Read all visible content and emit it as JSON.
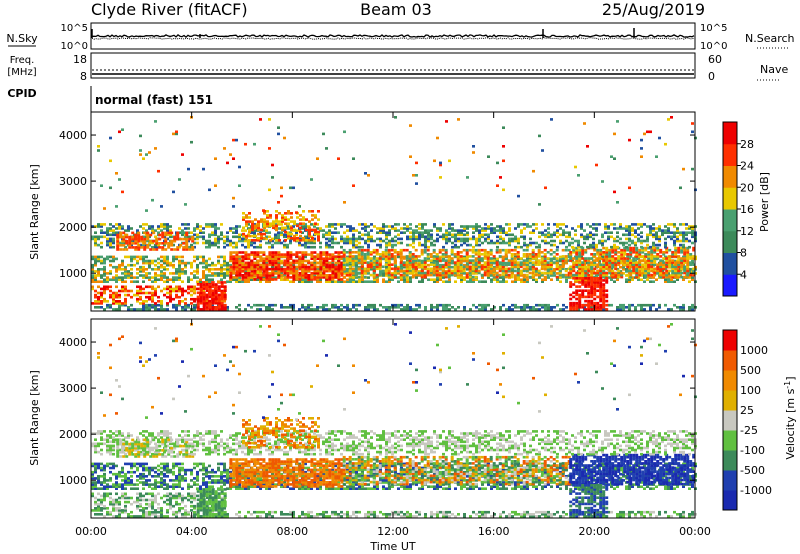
{
  "header": {
    "station": "Clyde River (fitACF)",
    "beam": "Beam 03",
    "date": "25/Aug/2019"
  },
  "noise_panel": {
    "left_label": "N.Sky",
    "right_label": "N.Search",
    "left_ticks": [
      "10^5",
      "10^0"
    ],
    "right_ticks": [
      "10^5",
      "10^0"
    ]
  },
  "freq_panel": {
    "left_label_1": "Freq.",
    "left_label_2": "[MHz]",
    "right_label": "Nave",
    "left_ticks": [
      "18",
      "8"
    ],
    "right_ticks": [
      "60",
      "0"
    ]
  },
  "cpid": {
    "label": "CPID",
    "value": "normal (fast) 151"
  },
  "colors": {
    "power": [
      "#1a1aff",
      "#2050a0",
      "#3c8a5a",
      "#4aa070",
      "#e8c800",
      "#f08a00",
      "#ff3000",
      "#ee0000"
    ],
    "velocity": [
      "#ee0000",
      "#f05a00",
      "#f08a00",
      "#e0b000",
      "#c8c8c0",
      "#60c040",
      "#3c8a5a",
      "#2040b0",
      "#1a2ab0"
    ]
  },
  "chart_data": [
    {
      "type": "heatmap",
      "ylabel": "Slant Range [km]",
      "xlabel": "",
      "x_ticks": [
        "00:00",
        "04:00",
        "08:00",
        "12:00",
        "16:00",
        "20:00",
        "00:00"
      ],
      "xlim_hours": [
        0,
        24
      ],
      "y_ticks": [
        1000,
        2000,
        3000,
        4000
      ],
      "ylim_km": [
        180,
        4500
      ],
      "colorbar": {
        "label": "Power [dB]",
        "ticks": [
          4,
          8,
          12,
          16,
          20,
          24,
          28
        ],
        "range": [
          0,
          32
        ]
      }
    },
    {
      "type": "heatmap",
      "ylabel": "Slant Range [km]",
      "xlabel": "Time UT",
      "x_ticks": [
        "00:00",
        "04:00",
        "08:00",
        "12:00",
        "16:00",
        "20:00",
        "00:00"
      ],
      "xlim_hours": [
        0,
        24
      ],
      "y_ticks": [
        1000,
        2000,
        3000,
        4000
      ],
      "ylim_km": [
        180,
        4500
      ],
      "colorbar": {
        "label_main": "Velocity",
        "label_unit": "[m s",
        "label_exp": "-1",
        "label_close": "]",
        "ticks": [
          "1000",
          "500",
          "100",
          "25",
          "-25",
          "-100",
          "-500",
          "-1000"
        ]
      }
    }
  ]
}
